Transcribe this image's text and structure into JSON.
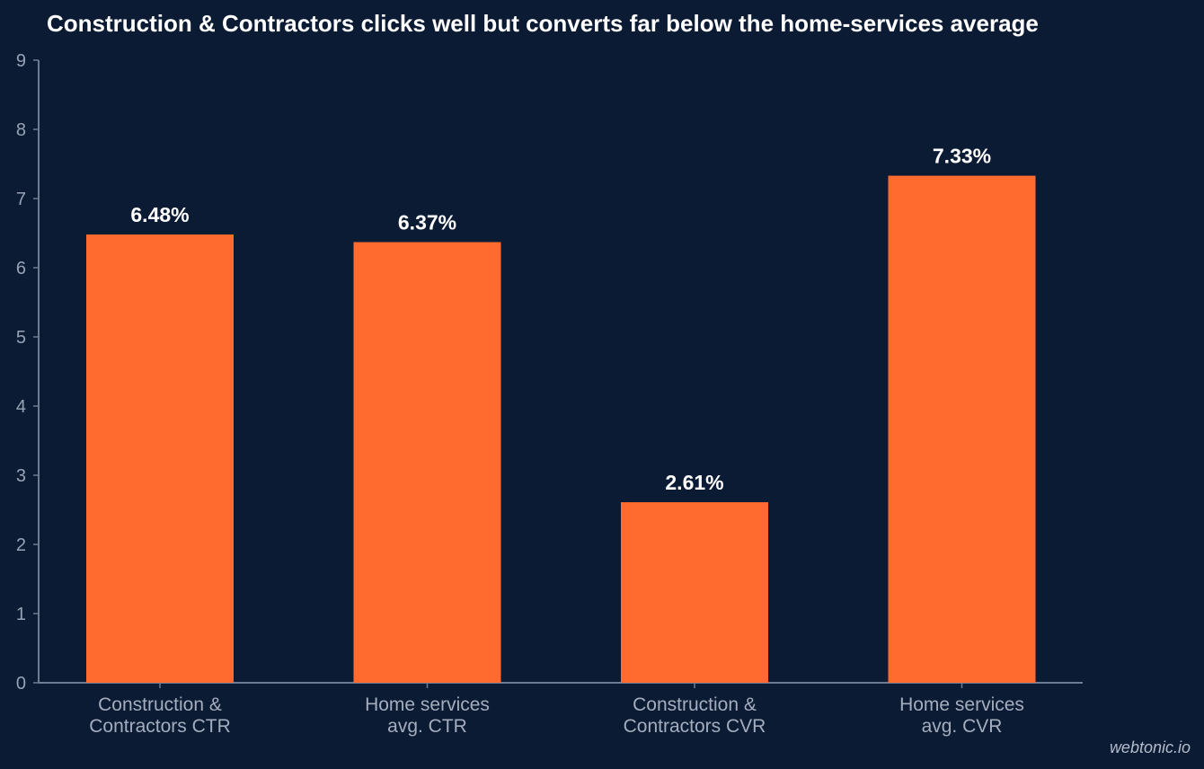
{
  "chart_data": {
    "type": "bar",
    "title": "Construction & Contractors clicks well but converts far below the home-services average",
    "categories": [
      [
        "Construction &",
        "Contractors CTR"
      ],
      [
        "Home services",
        "avg. CTR"
      ],
      [
        "Construction &",
        "Contractors CVR"
      ],
      [
        "Home services",
        "avg. CVR"
      ]
    ],
    "values": [
      6.48,
      6.37,
      2.61,
      7.33
    ],
    "data_labels": [
      "6.48%",
      "6.37%",
      "2.61%",
      "7.33%"
    ],
    "xlabel": "",
    "ylabel": "",
    "ylim": [
      0,
      9
    ],
    "yticks": [
      "0",
      "1",
      "2",
      "3",
      "4",
      "5",
      "6",
      "7",
      "8",
      "9"
    ],
    "grid": false,
    "legend": "none",
    "bar_color": "#ff6b2e",
    "background_color": "#0c1b34"
  },
  "watermark": "webtonic.io"
}
